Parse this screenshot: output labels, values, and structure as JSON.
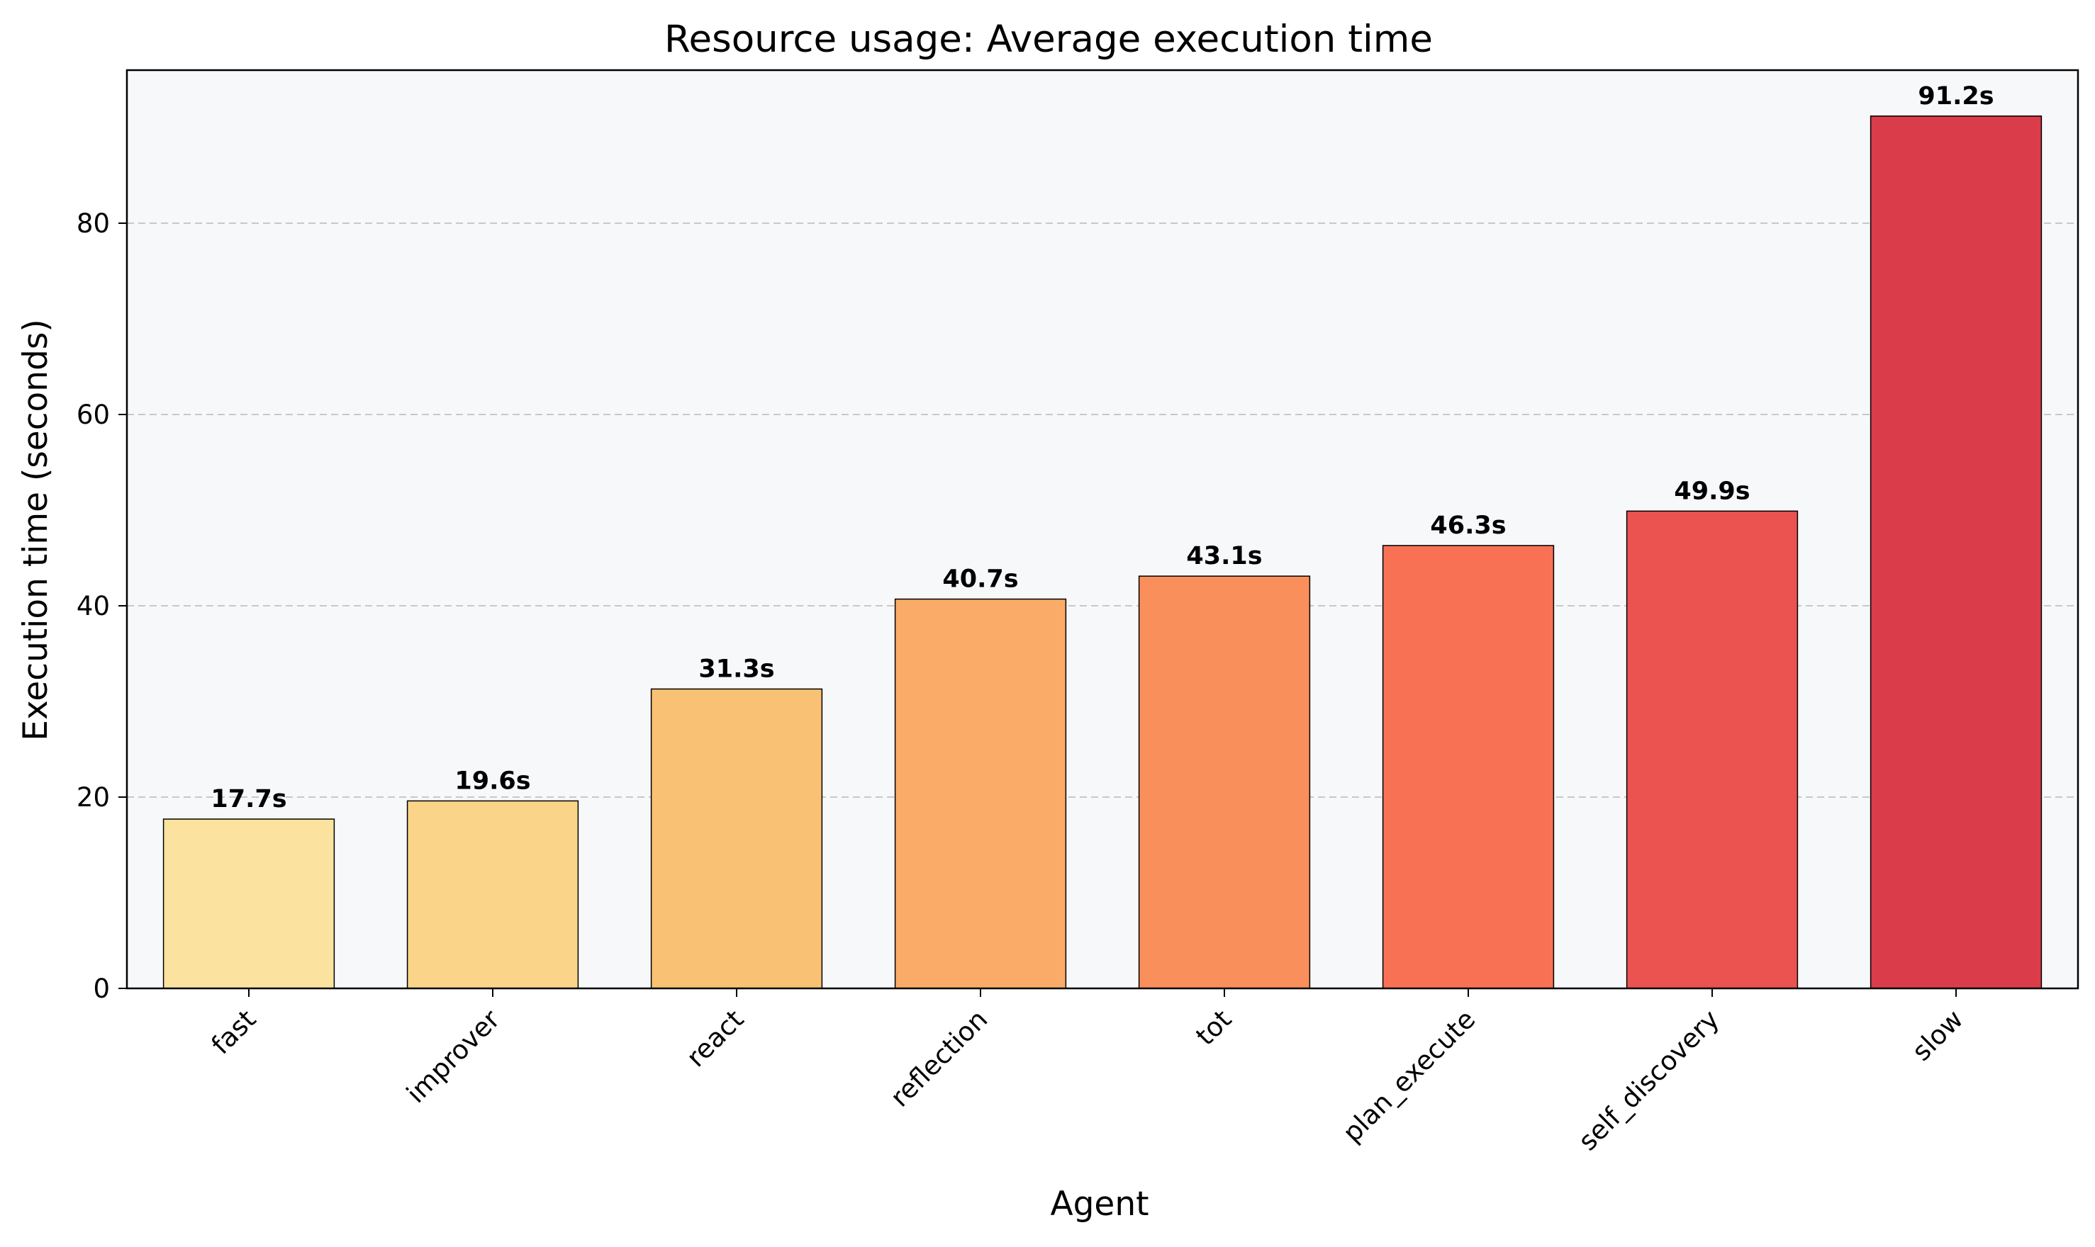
{
  "chart_data": {
    "type": "bar",
    "title": "Resource usage: Average execution time",
    "xlabel": "Agent",
    "ylabel": "Execution time (seconds)",
    "categories": [
      "fast",
      "improver",
      "react",
      "reflection",
      "tot",
      "plan_execute",
      "self_discovery",
      "slow"
    ],
    "values": [
      17.7,
      19.6,
      31.3,
      40.7,
      43.1,
      46.3,
      49.9,
      91.2
    ],
    "data_labels": [
      "17.7s",
      "19.6s",
      "31.3s",
      "40.7s",
      "43.1s",
      "46.3s",
      "49.9s",
      "91.2s"
    ],
    "colors": [
      "#fbe39f",
      "#fad589",
      "#f9c173",
      "#f9ab67",
      "#f98f5b",
      "#f87154",
      "#eb5350",
      "#da3c4a"
    ],
    "ylim": [
      0,
      96
    ],
    "yticks": [
      0,
      20,
      40,
      60,
      80
    ],
    "ytick_labels": [
      "0",
      "20",
      "40",
      "60",
      "80"
    ],
    "grid": "y-dashed",
    "plot_background": "#f7f8fa",
    "bar_edge_color": "#000000",
    "grid_color": "#c8c8c8"
  }
}
